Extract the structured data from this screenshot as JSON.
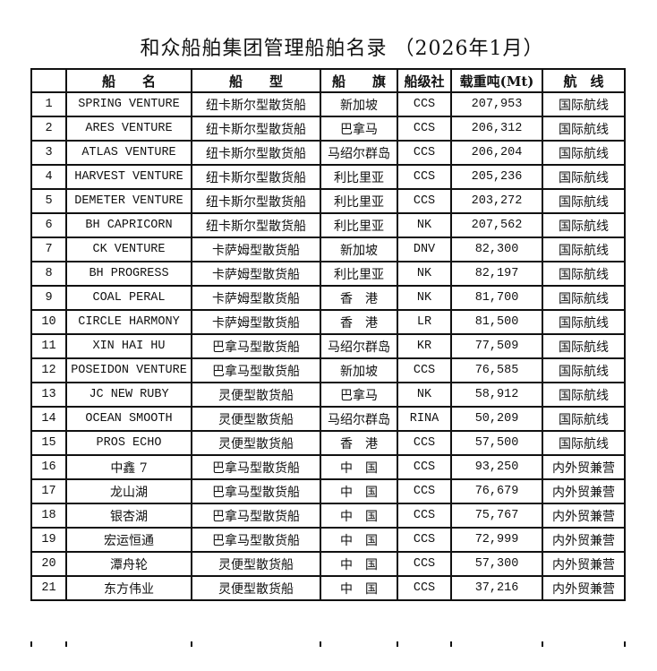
{
  "title": "和众船舶集团管理船舶名录  （2026年1月）",
  "headers": [
    "",
    "船　　名",
    "船　　型",
    "船　　旗",
    "船级社",
    "载重吨(Mt)",
    "航　线"
  ],
  "rows": [
    [
      "1",
      "SPRING VENTURE",
      "纽卡斯尔型散货船",
      "新加坡",
      "CCS",
      "207,953",
      "国际航线"
    ],
    [
      "2",
      "ARES VENTURE",
      "纽卡斯尔型散货船",
      "巴拿马",
      "CCS",
      "206,312",
      "国际航线"
    ],
    [
      "3",
      "ATLAS VENTURE",
      "纽卡斯尔型散货船",
      "马绍尔群岛",
      "CCS",
      "206,204",
      "国际航线"
    ],
    [
      "4",
      "HARVEST VENTURE",
      "纽卡斯尔型散货船",
      "利比里亚",
      "CCS",
      "205,236",
      "国际航线"
    ],
    [
      "5",
      "DEMETER VENTURE",
      "纽卡斯尔型散货船",
      "利比里亚",
      "CCS",
      "203,272",
      "国际航线"
    ],
    [
      "6",
      "BH CAPRICORN",
      "纽卡斯尔型散货船",
      "利比里亚",
      "NK",
      "207,562",
      "国际航线"
    ],
    [
      "7",
      "CK VENTURE",
      "卡萨姆型散货船",
      "新加坡",
      "DNV",
      "82,300",
      "国际航线"
    ],
    [
      "8",
      "BH PROGRESS",
      "卡萨姆型散货船",
      "利比里亚",
      "NK",
      "82,197",
      "国际航线"
    ],
    [
      "9",
      "COAL PERAL",
      "卡萨姆型散货船",
      "香　港",
      "NK",
      "81,700",
      "国际航线"
    ],
    [
      "10",
      "CIRCLE HARMONY",
      "卡萨姆型散货船",
      "香　港",
      "LR",
      "81,500",
      "国际航线"
    ],
    [
      "11",
      "XIN HAI HU",
      "巴拿马型散货船",
      "马绍尔群岛",
      "KR",
      "77,509",
      "国际航线"
    ],
    [
      "12",
      "POSEIDON VENTURE",
      "巴拿马型散货船",
      "新加坡",
      "CCS",
      "76,585",
      "国际航线"
    ],
    [
      "13",
      "JC NEW RUBY",
      "灵便型散货船",
      "巴拿马",
      "NK",
      "58,912",
      "国际航线"
    ],
    [
      "14",
      "OCEAN SMOOTH",
      "灵便型散货船",
      "马绍尔群岛",
      "RINA",
      "50,209",
      "国际航线"
    ],
    [
      "15",
      "PROS ECHO",
      "灵便型散货船",
      "香　港",
      "CCS",
      "57,500",
      "国际航线"
    ],
    [
      "16",
      "中鑫 7",
      "巴拿马型散货船",
      "中　国",
      "CCS",
      "93,250",
      "内外贸兼营"
    ],
    [
      "17",
      "龙山湖",
      "巴拿马型散货船",
      "中　国",
      "CCS",
      "76,679",
      "内外贸兼营"
    ],
    [
      "18",
      "银杏湖",
      "巴拿马型散货船",
      "中　国",
      "CCS",
      "75,767",
      "内外贸兼营"
    ],
    [
      "19",
      "宏运恒通",
      "巴拿马型散货船",
      "中　国",
      "CCS",
      "72,999",
      "内外贸兼营"
    ],
    [
      "20",
      "潭舟轮",
      "灵便型散货船",
      "中　国",
      "CCS",
      "57,300",
      "内外贸兼营"
    ],
    [
      "21",
      "东方伟业",
      "灵便型散货船",
      "中　国",
      "CCS",
      "37,216",
      "内外贸兼营"
    ]
  ]
}
